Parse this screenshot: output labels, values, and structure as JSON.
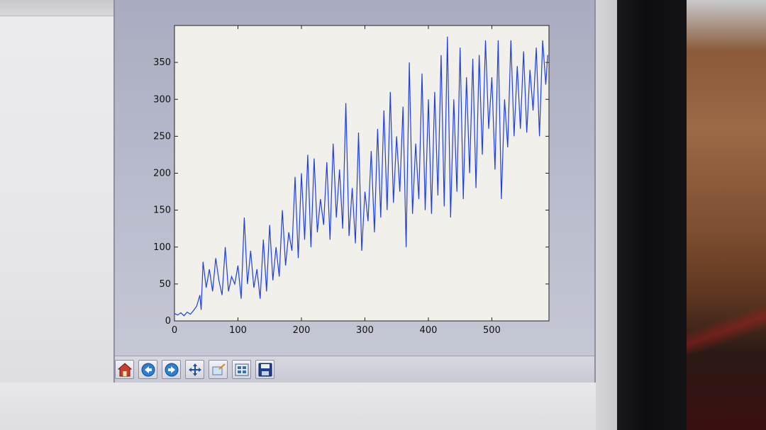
{
  "window": {
    "type": "matplotlib-figure"
  },
  "toolbar": {
    "buttons": [
      {
        "name": "home",
        "icon": "home-icon"
      },
      {
        "name": "back",
        "icon": "back-arrow-icon"
      },
      {
        "name": "forward",
        "icon": "forward-arrow-icon"
      },
      {
        "name": "pan",
        "icon": "pan-arrows-icon"
      },
      {
        "name": "zoom",
        "icon": "zoom-rect-icon"
      },
      {
        "name": "subplots",
        "icon": "subplots-config-icon"
      },
      {
        "name": "save",
        "icon": "save-disk-icon"
      }
    ]
  },
  "chart_data": {
    "type": "line",
    "title": "",
    "xlabel": "",
    "ylabel": "",
    "xlim": [
      0,
      590
    ],
    "ylim": [
      0,
      400
    ],
    "xticks": [
      0,
      100,
      200,
      300,
      400,
      500
    ],
    "yticks": [
      0,
      50,
      100,
      150,
      200,
      250,
      300,
      350
    ],
    "grid": false,
    "line_color": "#1f3fe0",
    "series": [
      {
        "x": [
          0,
          5,
          10,
          15,
          20,
          25,
          30,
          35,
          40,
          42,
          45,
          50,
          55,
          60,
          65,
          70,
          75,
          80,
          85,
          90,
          95,
          100,
          105,
          110,
          115,
          120,
          125,
          130,
          135,
          140,
          145,
          150,
          155,
          160,
          165,
          170,
          175,
          180,
          185,
          190,
          195,
          200,
          205,
          210,
          215,
          220,
          225,
          230,
          235,
          240,
          245,
          250,
          255,
          260,
          265,
          270,
          275,
          280,
          285,
          290,
          295,
          300,
          305,
          310,
          315,
          320,
          325,
          330,
          335,
          340,
          345,
          350,
          355,
          360,
          365,
          370,
          375,
          380,
          385,
          390,
          395,
          400,
          405,
          410,
          415,
          420,
          425,
          430,
          435,
          440,
          445,
          450,
          455,
          460,
          465,
          470,
          475,
          480,
          485,
          490,
          495,
          500,
          505,
          510,
          515,
          520,
          525,
          530,
          535,
          540,
          545,
          550,
          555,
          560,
          565,
          570,
          575,
          580,
          585,
          588
        ],
        "y": [
          10,
          8,
          11,
          7,
          12,
          9,
          14,
          20,
          35,
          15,
          80,
          45,
          70,
          40,
          85,
          55,
          35,
          100,
          40,
          60,
          50,
          75,
          30,
          140,
          50,
          95,
          45,
          70,
          30,
          110,
          40,
          130,
          55,
          100,
          60,
          150,
          75,
          120,
          95,
          195,
          85,
          200,
          110,
          225,
          100,
          220,
          120,
          165,
          130,
          215,
          110,
          240,
          140,
          205,
          125,
          295,
          115,
          180,
          105,
          255,
          95,
          175,
          135,
          230,
          120,
          260,
          140,
          285,
          150,
          310,
          160,
          250,
          175,
          290,
          100,
          350,
          145,
          240,
          165,
          335,
          150,
          300,
          145,
          310,
          170,
          360,
          155,
          385,
          140,
          300,
          175,
          370,
          165,
          330,
          200,
          355,
          180,
          360,
          225,
          380,
          260,
          330,
          205,
          380,
          165,
          300,
          235,
          380,
          250,
          345,
          260,
          365,
          255,
          340,
          285,
          370,
          250,
          380,
          320,
          360
        ]
      }
    ]
  }
}
